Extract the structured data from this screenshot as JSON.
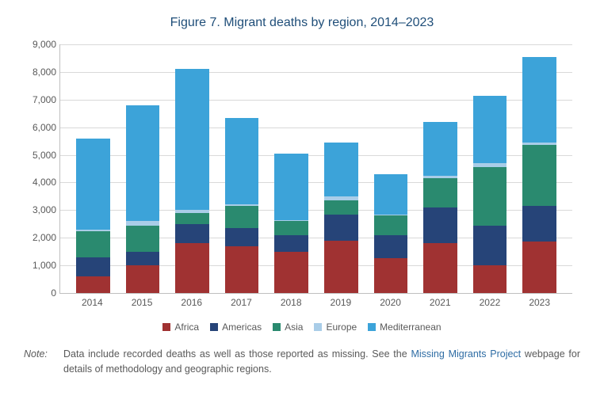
{
  "title": {
    "text": "Figure 7. Migrant deaths by region, 2014–2023",
    "color": "#1f4e79",
    "fontsize": 16
  },
  "chart": {
    "type": "stacked-bar",
    "ylim": [
      0,
      9000
    ],
    "ytick_step": 1000,
    "yticks": [
      "0",
      "1,000",
      "2,000",
      "3,000",
      "4,000",
      "5,000",
      "6,000",
      "7,000",
      "8,000",
      "9,000"
    ],
    "grid_color": "#d9d9d9",
    "axis_color": "#bfbfbf",
    "background_color": "#ffffff",
    "bar_width_rel": 0.68,
    "label_fontsize": 12,
    "label_color": "#595959",
    "categories": [
      "2014",
      "2015",
      "2016",
      "2017",
      "2018",
      "2019",
      "2020",
      "2021",
      "2022",
      "2023"
    ],
    "series": [
      {
        "name": "Africa",
        "color": "#a03232"
      },
      {
        "name": "Americas",
        "color": "#264478"
      },
      {
        "name": "Asia",
        "color": "#2a8a6f"
      },
      {
        "name": "Europe",
        "color": "#a9cde8"
      },
      {
        "name": "Mediterranean",
        "color": "#3ca3d9"
      }
    ],
    "data": [
      [
        600,
        700,
        950,
        50,
        3300
      ],
      [
        1000,
        500,
        950,
        150,
        4200
      ],
      [
        1800,
        700,
        400,
        100,
        5100
      ],
      [
        1700,
        650,
        800,
        50,
        3150
      ],
      [
        1500,
        600,
        500,
        50,
        2400
      ],
      [
        1900,
        950,
        500,
        150,
        1950
      ],
      [
        1250,
        850,
        700,
        50,
        1450
      ],
      [
        1800,
        1300,
        1050,
        100,
        1950
      ],
      [
        1000,
        1450,
        2100,
        150,
        2450
      ],
      [
        1850,
        1300,
        2200,
        100,
        3100
      ]
    ]
  },
  "legend": {
    "items": [
      "Africa",
      "Americas",
      "Asia",
      "Europe",
      "Mediterranean"
    ],
    "fontsize": 12,
    "color": "#595959"
  },
  "note": {
    "label": "Note:",
    "before_link": "Data include recorded deaths as well as those reported as missing. See the ",
    "link_text": "Missing Migrants Project",
    "link_color": "#2e6ca4",
    "after_link": " webpage for details of methodology and geographic regions.",
    "fontsize": 12.5,
    "color": "#595959"
  }
}
